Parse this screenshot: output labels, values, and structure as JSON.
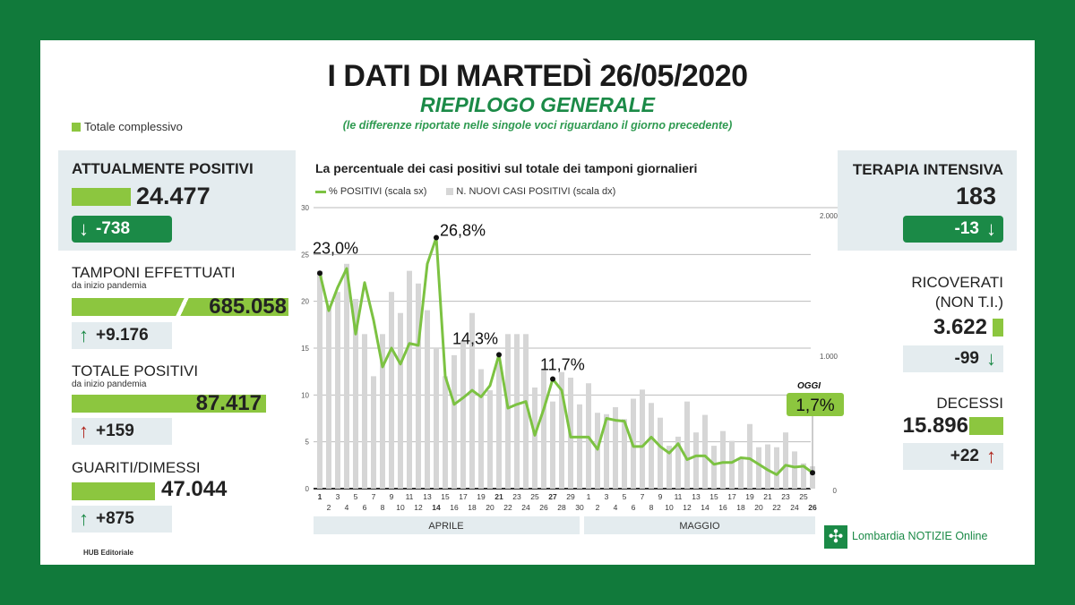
{
  "header": {
    "title": "I DATI DI MARTEDÌ 26/05/2020",
    "subtitle": "RIEPILOGO GENERALE",
    "note": "(le differenze riportate nelle singole voci riguardano il giorno precedente)"
  },
  "legend_total": "Totale complessivo",
  "colors": {
    "frame": "#117a3b",
    "accent_green": "#1b8a47",
    "bar_green": "#8cc63f",
    "box_gray": "#e4ecef",
    "arrow_red": "#b0241b"
  },
  "left": {
    "attualmente_positivi": {
      "label": "ATTUALMENTE POSITIVI",
      "value": "24.477",
      "delta": "-738",
      "arrow": "arrow-down-icon"
    },
    "tamponi": {
      "label": "TAMPONI EFFETTUATI",
      "sublabel": "da inizio pandemia",
      "value": "685.058",
      "delta": "+9.176",
      "arrow": "arrow-up-icon"
    },
    "totale_positivi": {
      "label": "TOTALE POSITIVI",
      "sublabel": "da inizio pandemia",
      "value": "87.417",
      "delta": "+159",
      "arrow": "arrow-up-icon"
    },
    "guariti": {
      "label": "GUARITI/DIMESSI",
      "value": "47.044",
      "delta": "+875",
      "arrow": "arrow-up-icon"
    },
    "credit": "HUB Editoriale"
  },
  "right": {
    "terapia": {
      "label": "TERAPIA INTENSIVA",
      "value": "183",
      "delta": "-13"
    },
    "ricoverati": {
      "label": "RICOVERATI",
      "label2": "(NON T.I.)",
      "value": "3.622",
      "delta": "-99"
    },
    "decessi": {
      "label": "DECESSI",
      "value": "15.896",
      "delta": "+22"
    },
    "logo": "Lombardia NOTIZIE Online"
  },
  "chart_data": {
    "type": "bar+line",
    "title": "La percentuale dei casi positivi sul totale dei tamponi giornalieri",
    "legend": [
      "% POSITIVI (scala sx)",
      "N. NUOVI CASI POSITIVI (scala dx)"
    ],
    "months": [
      "APRILE",
      "MAGGIO"
    ],
    "days": [
      1,
      2,
      3,
      4,
      5,
      6,
      7,
      8,
      9,
      10,
      11,
      12,
      13,
      14,
      15,
      16,
      17,
      18,
      19,
      20,
      21,
      22,
      23,
      24,
      25,
      26,
      27,
      28,
      29,
      30,
      1,
      2,
      3,
      4,
      5,
      6,
      7,
      8,
      9,
      10,
      11,
      12,
      13,
      14,
      15,
      16,
      17,
      18,
      19,
      20,
      21,
      22,
      23,
      24,
      25,
      26
    ],
    "bold_days_index": [
      0,
      13,
      20,
      26,
      55
    ],
    "left_axis": {
      "range": [
        0,
        30
      ],
      "ticks": [
        "0",
        "5",
        "10",
        "15",
        "20",
        "25",
        "30"
      ]
    },
    "right_axis": {
      "range": [
        0,
        2000
      ],
      "ticks": [
        "0",
        "1.000",
        "2.000"
      ]
    },
    "series": [
      {
        "name": "% POSITIVI (scala sx)",
        "type": "line",
        "color": "#7cc242",
        "values": [
          23.0,
          19,
          21.5,
          23.5,
          16.5,
          22,
          18,
          13,
          15,
          13.3,
          15.5,
          15.3,
          24,
          26.8,
          12,
          9,
          9.7,
          10.5,
          9.8,
          11,
          14.3,
          8.6,
          9,
          9.3,
          5.7,
          8.5,
          11.7,
          10.5,
          5.5,
          5.5,
          5.5,
          4.2,
          7.5,
          7.3,
          7.2,
          4.5,
          4.5,
          5.5,
          4.5,
          3.8,
          4.8,
          3.1,
          3.5,
          3.5,
          2.6,
          2.8,
          2.8,
          3.3,
          3.2,
          2.6,
          2.0,
          1.5,
          2.5,
          2.3,
          2.4,
          1.7
        ]
      },
      {
        "name": "N. NUOVI CASI POSITIVI (scala dx)",
        "type": "bar",
        "color": "#d6d6d6",
        "values": [
          1550,
          1300,
          1400,
          1600,
          1350,
          1100,
          800,
          1100,
          1400,
          1250,
          1550,
          1460,
          1270,
          1000,
          800,
          950,
          1050,
          1250,
          850,
          700,
          900,
          1100,
          1100,
          1100,
          720,
          850,
          620,
          830,
          790,
          600,
          750,
          540,
          530,
          580,
          495,
          640,
          705,
          610,
          505,
          305,
          370,
          620,
          400,
          525,
          305,
          410,
          340,
          220,
          460,
          295,
          315,
          295,
          400,
          265,
          180,
          159
        ]
      }
    ],
    "annotations": [
      {
        "index": 0,
        "label": "23,0%"
      },
      {
        "index": 13,
        "label": "26,8%"
      },
      {
        "index": 20,
        "label": "14,3%"
      },
      {
        "index": 26,
        "label": "11,7%"
      }
    ],
    "today": {
      "label": "OGGI",
      "value": "1,7%"
    }
  }
}
